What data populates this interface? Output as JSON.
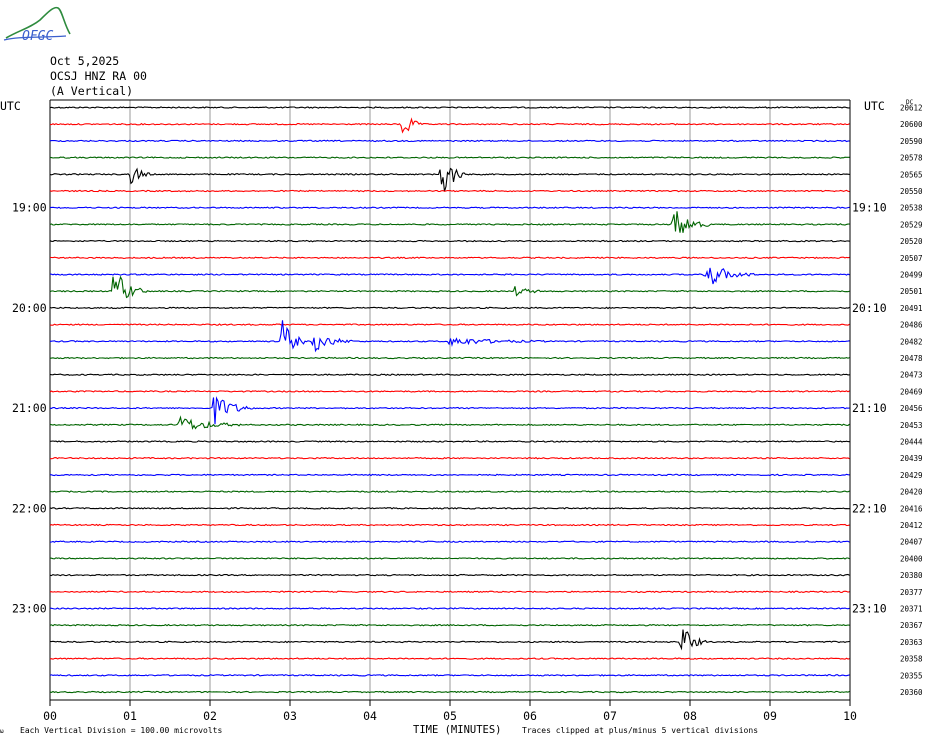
{
  "header": {
    "logo_text": "OFGC",
    "date": "Oct 5,2025",
    "station": "OCSJ HNZ RA 00",
    "component": "(A Vertical)"
  },
  "left_tz": "UTC",
  "right_tz": "UTC",
  "dc_label": "DC",
  "footer": {
    "scale_note": "Each Vertical Division =  100.00 microvolts",
    "xlabel": "TIME (MINUTES)",
    "clip_note": "Traces clipped at plus/minus 5 vertical divisions"
  },
  "colors": {
    "black": "#000000",
    "red": "#ff0000",
    "blue": "#0000ff",
    "green": "#006400",
    "grid": "#808080"
  },
  "chart_data": {
    "type": "line",
    "title": "OCSJ HNZ RA 00 (A Vertical)",
    "xlabel": "TIME (MINUTES)",
    "xlim": [
      0,
      10
    ],
    "x_ticks": [
      "00",
      "01",
      "02",
      "03",
      "04",
      "05",
      "06",
      "07",
      "08",
      "09",
      "10"
    ],
    "grid": true,
    "color_cycle": [
      "#000000",
      "#ff0000",
      "#0000ff",
      "#006400"
    ],
    "left_time_labels": [
      {
        "row": 6,
        "label": "19:00"
      },
      {
        "row": 12,
        "label": "20:00"
      },
      {
        "row": 18,
        "label": "21:00"
      },
      {
        "row": 24,
        "label": "22:00"
      },
      {
        "row": 30,
        "label": "23:00"
      }
    ],
    "right_time_labels": [
      {
        "row": 6,
        "label": "19:10"
      },
      {
        "row": 12,
        "label": "20:10"
      },
      {
        "row": 18,
        "label": "21:10"
      },
      {
        "row": 24,
        "label": "22:10"
      },
      {
        "row": 30,
        "label": "23:10"
      }
    ],
    "dc_offsets": [
      20612,
      20600,
      20590,
      20578,
      20565,
      20550,
      20538,
      20529,
      20520,
      20507,
      20499,
      20501,
      20491,
      20486,
      20482,
      20478,
      20473,
      20469,
      20456,
      20453,
      20444,
      20439,
      20429,
      20420,
      20416,
      20412,
      20407,
      20400,
      20380,
      20377,
      20371,
      20367,
      20363,
      20358,
      20355,
      20360
    ],
    "events": [
      {
        "row": 1,
        "minute": 4.4,
        "amp": 2.2,
        "dur": 0.25
      },
      {
        "row": 4,
        "minute": 1.02,
        "amp": 1.5,
        "dur": 0.25
      },
      {
        "row": 4,
        "minute": 4.9,
        "amp": 3.5,
        "dur": 0.3
      },
      {
        "row": 7,
        "minute": 7.8,
        "amp": 2.2,
        "dur": 0.45
      },
      {
        "row": 10,
        "minute": 8.2,
        "amp": 1.7,
        "dur": 0.6
      },
      {
        "row": 11,
        "minute": 0.8,
        "amp": 3.0,
        "dur": 0.4
      },
      {
        "row": 11,
        "minute": 5.8,
        "amp": 0.6,
        "dur": 0.4
      },
      {
        "row": 14,
        "minute": 2.9,
        "amp": 3.0,
        "dur": 0.3
      },
      {
        "row": 14,
        "minute": 3.3,
        "amp": 1.3,
        "dur": 0.5
      },
      {
        "row": 14,
        "minute": 5.0,
        "amp": 0.5,
        "dur": 1.2
      },
      {
        "row": 18,
        "minute": 2.05,
        "amp": 2.0,
        "dur": 0.5
      },
      {
        "row": 19,
        "minute": 1.6,
        "amp": 1.1,
        "dur": 0.8
      },
      {
        "row": 32,
        "minute": 7.9,
        "amp": 2.3,
        "dur": 0.3
      }
    ]
  }
}
